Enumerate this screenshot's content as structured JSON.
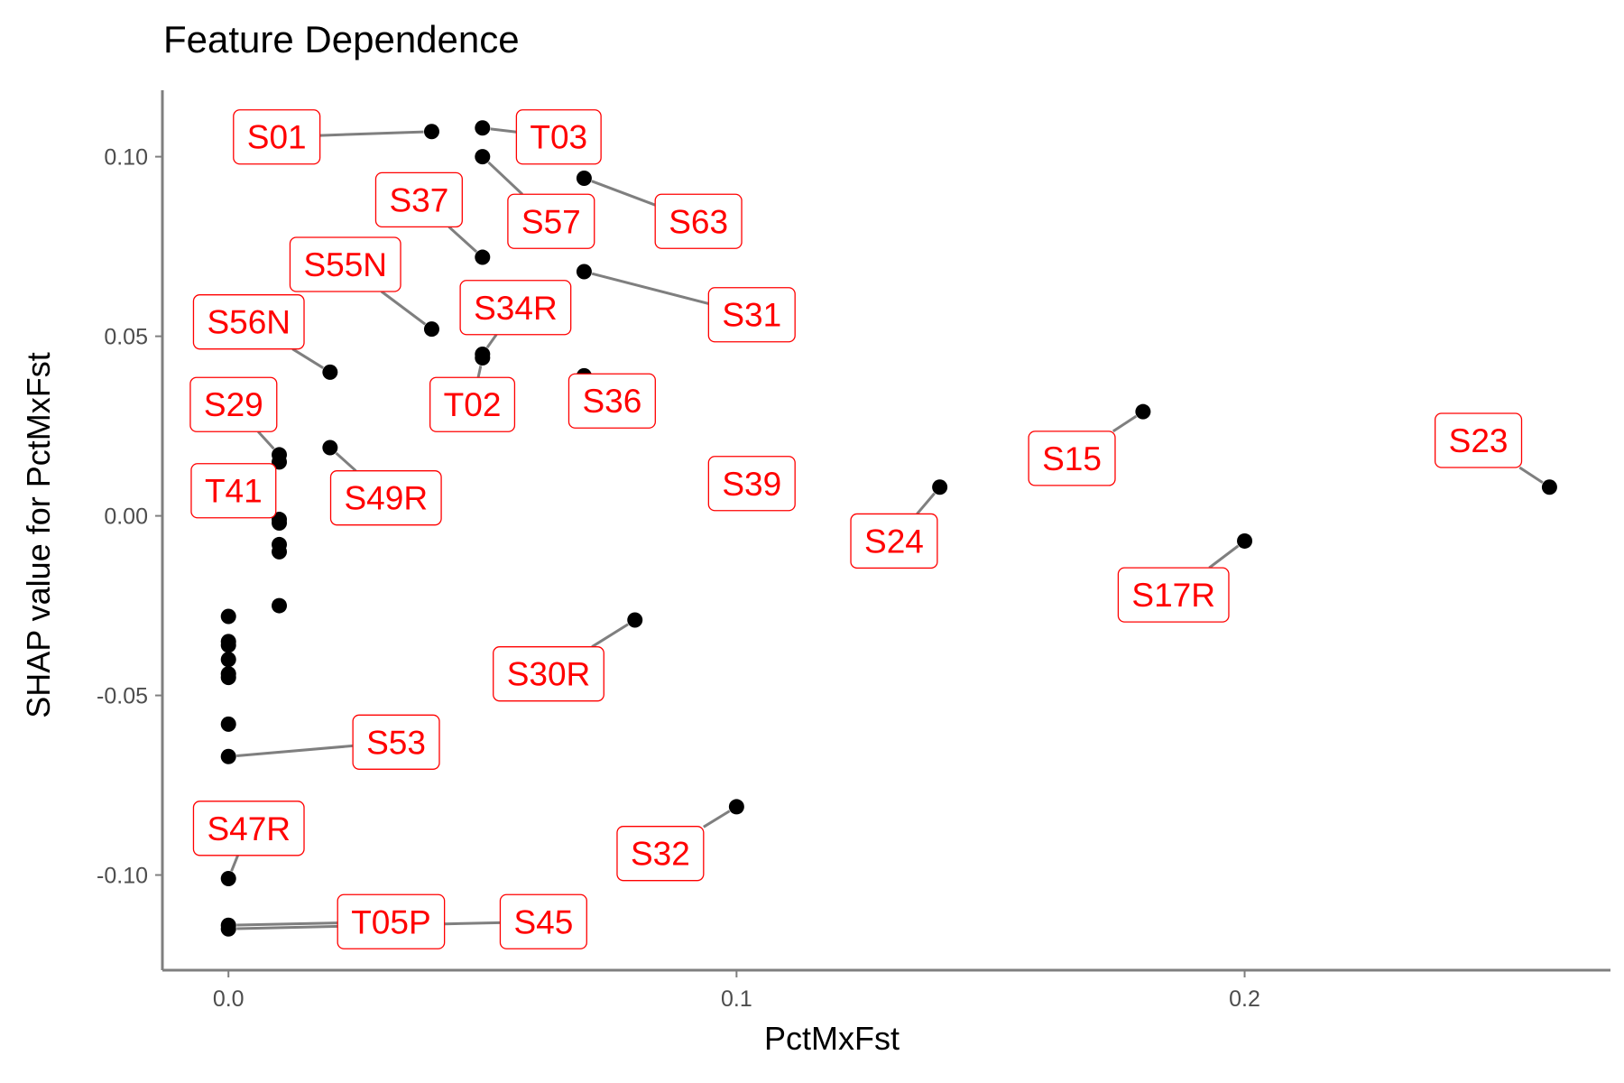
{
  "chart_data": {
    "type": "scatter",
    "title": "Feature Dependence",
    "xlabel": "PctMxFst",
    "ylabel": "SHAP value for PctMxFst",
    "xlim": [
      -0.013,
      0.272
    ],
    "ylim": [
      -0.1265,
      0.1185
    ],
    "x_ticks": [
      0.0,
      0.1,
      0.2
    ],
    "x_tick_labels": [
      "0.0",
      "0.1",
      "0.2"
    ],
    "y_ticks": [
      0.1,
      0.05,
      0.0,
      -0.05,
      -0.1
    ],
    "y_tick_labels": [
      "0.10",
      "0.05",
      "0.00",
      "-0.05",
      "-0.10"
    ],
    "grid": false,
    "legend": "none",
    "colors": {
      "point": "#000000",
      "label_text": "#ff0000",
      "label_border": "#ff0000",
      "leader": "#7f7f7f",
      "axis": "#7f7f7f"
    },
    "points": [
      {
        "x": 0.04,
        "y": 0.107,
        "label": "S01",
        "lx": 0.0095,
        "ly": 0.1055
      },
      {
        "x": 0.05,
        "y": 0.108,
        "label": "T03",
        "lx": 0.065,
        "ly": 0.1055
      },
      {
        "x": 0.05,
        "y": 0.1,
        "label": "S57",
        "lx": 0.0635,
        "ly": 0.082
      },
      {
        "x": 0.07,
        "y": 0.094,
        "label": "S63",
        "lx": 0.0925,
        "ly": 0.082
      },
      {
        "x": 0.05,
        "y": 0.072,
        "label": "S37",
        "lx": 0.0375,
        "ly": 0.088
      },
      {
        "x": 0.07,
        "y": 0.068,
        "label": "S31",
        "lx": 0.103,
        "ly": 0.056
      },
      {
        "x": 0.04,
        "y": 0.052,
        "label": "S55N",
        "lx": 0.023,
        "ly": 0.07
      },
      {
        "x": 0.05,
        "y": 0.045,
        "label": "S34R",
        "lx": 0.0565,
        "ly": 0.058
      },
      {
        "x": 0.02,
        "y": 0.04,
        "label": "S56N",
        "lx": 0.004,
        "ly": 0.054
      },
      {
        "x": 0.07,
        "y": 0.039,
        "label": "S36",
        "lx": 0.0755,
        "ly": 0.032
      },
      {
        "x": 0.05,
        "y": 0.044,
        "label": "T02",
        "lx": 0.048,
        "ly": 0.031
      },
      {
        "x": 0.01,
        "y": 0.017,
        "label": "S29",
        "lx": 0.001,
        "ly": 0.031
      },
      {
        "x": 0.1,
        "y": 0.01,
        "label": "S39",
        "lx": 0.103,
        "ly": 0.009
      },
      {
        "x": 0.02,
        "y": 0.019,
        "label": "S49R",
        "lx": 0.031,
        "ly": 0.005
      },
      {
        "x": 0.01,
        "y": 0.015,
        "label": "T41",
        "lx": 0.001,
        "ly": 0.007
      },
      {
        "x": 0.18,
        "y": 0.029,
        "label": "S15",
        "lx": 0.166,
        "ly": 0.016
      },
      {
        "x": 0.14,
        "y": 0.008,
        "label": "S24",
        "lx": 0.131,
        "ly": -0.007
      },
      {
        "x": 0.26,
        "y": 0.008,
        "label": "S23",
        "lx": 0.246,
        "ly": 0.021
      },
      {
        "x": 0.2,
        "y": -0.007,
        "label": "S17R",
        "lx": 0.186,
        "ly": -0.022
      },
      {
        "x": 0.08,
        "y": -0.029,
        "label": "S30R",
        "lx": 0.063,
        "ly": -0.044
      },
      {
        "x": 0.0,
        "y": -0.067,
        "label": "S53",
        "lx": 0.033,
        "ly": -0.063
      },
      {
        "x": 0.0,
        "y": -0.101,
        "label": "S47R",
        "lx": 0.004,
        "ly": -0.087
      },
      {
        "x": 0.1,
        "y": -0.081,
        "label": "S32",
        "lx": 0.085,
        "ly": -0.094
      },
      {
        "x": 0.0,
        "y": -0.114,
        "label": "T05P",
        "lx": 0.032,
        "ly": -0.113
      },
      {
        "x": 0.0,
        "y": -0.115,
        "label": "S45",
        "lx": 0.062,
        "ly": -0.113
      },
      {
        "x": 0.01,
        "y": -0.001,
        "label": ""
      },
      {
        "x": 0.01,
        "y": -0.002,
        "label": ""
      },
      {
        "x": 0.01,
        "y": -0.008,
        "label": ""
      },
      {
        "x": 0.01,
        "y": -0.01,
        "label": ""
      },
      {
        "x": 0.01,
        "y": -0.025,
        "label": ""
      },
      {
        "x": 0.0,
        "y": -0.028,
        "label": ""
      },
      {
        "x": 0.0,
        "y": -0.035,
        "label": ""
      },
      {
        "x": 0.0,
        "y": -0.036,
        "label": ""
      },
      {
        "x": 0.0,
        "y": -0.04,
        "label": ""
      },
      {
        "x": 0.0,
        "y": -0.044,
        "label": ""
      },
      {
        "x": 0.0,
        "y": -0.045,
        "label": ""
      },
      {
        "x": 0.0,
        "y": -0.058,
        "label": ""
      }
    ]
  }
}
